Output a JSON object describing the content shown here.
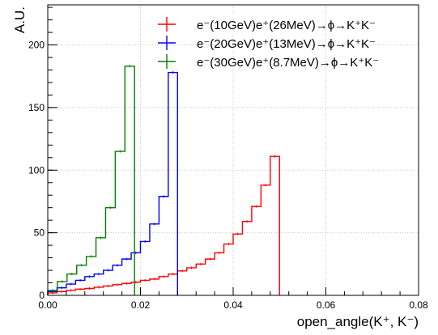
{
  "chart_data": {
    "type": "step-histogram",
    "xlabel": "open_angle(K⁺, K⁻)",
    "ylabel": "A.U.",
    "xlim": [
      0,
      0.08
    ],
    "ylim": [
      0,
      232
    ],
    "x_ticks": [
      0.0,
      0.02,
      0.04,
      0.06,
      0.08
    ],
    "x_tick_labels": [
      "0.00",
      "0.02",
      "0.04",
      "0.06",
      "0.08"
    ],
    "y_ticks": [
      0,
      50,
      100,
      150,
      200
    ],
    "y_tick_labels": [
      "0",
      "50",
      "100",
      "150",
      "200"
    ],
    "grid": true,
    "legend_position": "top-right",
    "series": [
      {
        "name": "e⁻(10GeV)e⁺(26MeV)→ϕ→K⁺K⁻",
        "color": "#ff0000",
        "bin_width": 0.002,
        "x_start": 0.0,
        "values": [
          2,
          3,
          4,
          5,
          5.5,
          6.5,
          7.5,
          8.5,
          9.5,
          10.5,
          12,
          13,
          15,
          17,
          19.5,
          22,
          25,
          29,
          34,
          41,
          49,
          59,
          71,
          88,
          111
        ]
      },
      {
        "name": "e⁻(20GeV)e⁺(13MeV)→ϕ→K⁺K⁻",
        "color": "#0000ff",
        "bin_width": 0.002,
        "x_start": 0.0,
        "values": [
          3,
          6,
          9,
          12,
          15,
          17,
          20,
          24,
          29,
          34,
          43,
          57,
          79,
          178
        ]
      },
      {
        "name": "e⁻(30GeV)e⁺(8.7MeV)→ϕ→K⁺K⁻",
        "color": "#008000",
        "bin_width": 0.00208,
        "x_start": 0.0,
        "values": [
          4,
          11,
          17,
          24,
          31,
          46,
          70,
          115,
          183
        ]
      }
    ]
  }
}
